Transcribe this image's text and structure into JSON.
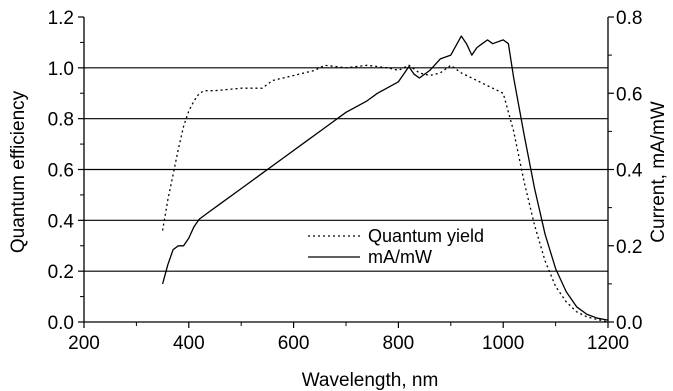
{
  "chart_data": {
    "type": "line",
    "xlabel": "Wavelength, nm",
    "ylabel_left": "Quantum efficiency",
    "ylabel_right": "Current, mA/mW",
    "xlim": [
      200,
      1200
    ],
    "ylim_left": [
      0.0,
      1.2
    ],
    "ylim_right": [
      0.0,
      0.8
    ],
    "x_ticks": [
      "200",
      "400",
      "600",
      "800",
      "1000",
      "1200"
    ],
    "y_ticks_left": [
      "0.0",
      "0.2",
      "0.4",
      "0.6",
      "0.8",
      "1.0",
      "1.2"
    ],
    "y_ticks_right": [
      "0.0",
      "0.2",
      "0.4",
      "0.6",
      "0.8"
    ],
    "grid": "horizontal",
    "legend_position": "center-bottom",
    "series": [
      {
        "name": "Quantum yield",
        "axis": "left",
        "style": "dotted",
        "x": [
          350,
          360,
          370,
          380,
          390,
          400,
          410,
          420,
          430,
          450,
          500,
          540,
          560,
          600,
          640,
          660,
          700,
          740,
          780,
          800,
          820,
          840,
          860,
          880,
          900,
          920,
          940,
          960,
          980,
          1000,
          1020,
          1040,
          1060,
          1080,
          1100,
          1120,
          1140,
          1160,
          1180,
          1200
        ],
        "y": [
          0.36,
          0.48,
          0.58,
          0.68,
          0.77,
          0.83,
          0.87,
          0.9,
          0.91,
          0.91,
          0.92,
          0.92,
          0.95,
          0.97,
          0.99,
          1.01,
          1.0,
          1.01,
          1.0,
          0.99,
          1.01,
          0.98,
          0.97,
          0.98,
          1.01,
          0.98,
          0.96,
          0.94,
          0.92,
          0.9,
          0.75,
          0.55,
          0.38,
          0.24,
          0.14,
          0.08,
          0.04,
          0.02,
          0.01,
          0.0
        ]
      },
      {
        "name": "mA/mW",
        "axis": "right",
        "style": "solid",
        "x": [
          350,
          360,
          370,
          380,
          390,
          400,
          410,
          420,
          440,
          460,
          500,
          540,
          580,
          620,
          660,
          700,
          740,
          760,
          800,
          820,
          830,
          840,
          860,
          880,
          900,
          920,
          930,
          940,
          950,
          960,
          970,
          980,
          1000,
          1010,
          1020,
          1040,
          1060,
          1080,
          1100,
          1120,
          1140,
          1160,
          1180,
          1200
        ],
        "y": [
          0.1,
          0.15,
          0.19,
          0.2,
          0.2,
          0.22,
          0.25,
          0.27,
          0.29,
          0.31,
          0.35,
          0.39,
          0.43,
          0.47,
          0.51,
          0.55,
          0.58,
          0.6,
          0.63,
          0.67,
          0.65,
          0.64,
          0.66,
          0.69,
          0.7,
          0.75,
          0.73,
          0.7,
          0.72,
          0.73,
          0.74,
          0.73,
          0.74,
          0.73,
          0.64,
          0.49,
          0.35,
          0.23,
          0.14,
          0.08,
          0.04,
          0.02,
          0.01,
          0.005
        ]
      }
    ]
  }
}
